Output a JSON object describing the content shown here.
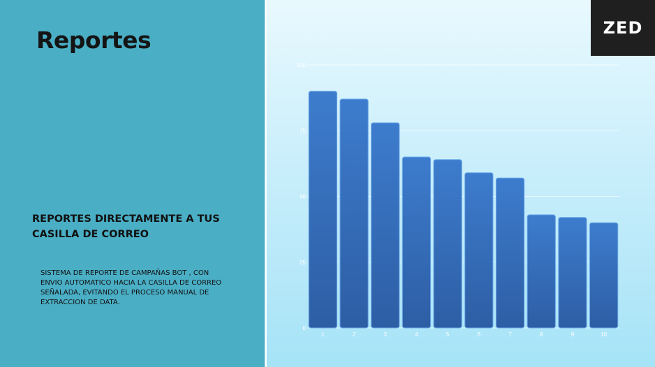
{
  "slide": {
    "title": "Reportes",
    "subtitle": "REPORTES DIRECTAMENTE A TUS CASILLA DE CORREO",
    "description": "SISTEMA DE REPORTE DE CAMPAÑAS BOT , CON ENVIO AUTOMATICO HACIA LA CASILLA DE CORREO SEÑALADA, EVITANDO EL PROCESO MANUAL DE EXTRACCION DE DATA.",
    "logo_text": "ZED",
    "logo_icon": "zed-logo-icon"
  },
  "colors": {
    "left_panel": "#4aaec5",
    "bar_top": "#3d7ccd",
    "bar_bottom": "#2e5fa6",
    "logo_bg": "#1f1f1f"
  },
  "chart_data": {
    "type": "bar",
    "categories": [
      "1",
      "2",
      "3",
      "4",
      "5",
      "6",
      "7",
      "8",
      "9",
      "10"
    ],
    "values": [
      90,
      87,
      78,
      65,
      64,
      59,
      57,
      43,
      42,
      40
    ],
    "ylim": [
      0,
      100
    ],
    "yticks": [
      "0",
      "25",
      "50",
      "75",
      "100"
    ],
    "grid": true,
    "legend": "none"
  }
}
